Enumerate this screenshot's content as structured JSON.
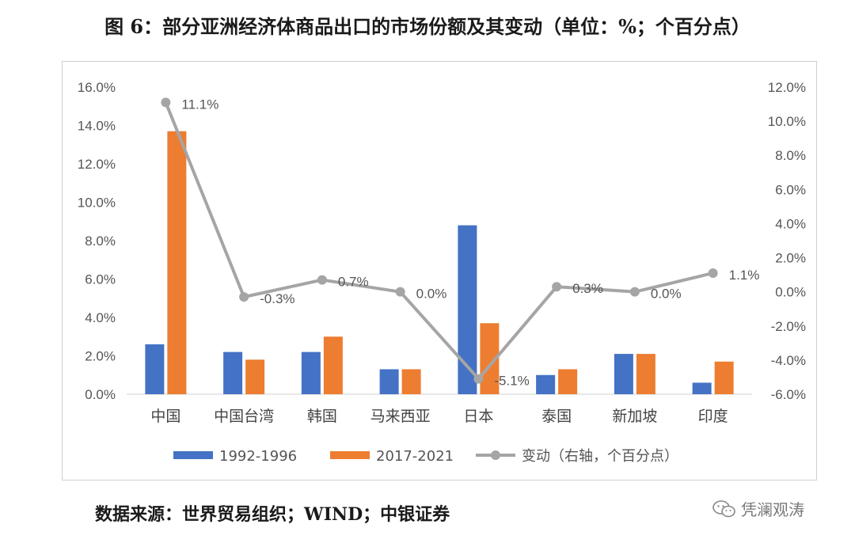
{
  "title": "图 6：部分亚洲经济体商品出口的市场份额及其变动（单位：%；个百分点）",
  "source": "数据来源：世界贸易组织；WIND；中银证券",
  "watermark": "凭澜观涛",
  "colors": {
    "series1": "#4472C4",
    "series2": "#ED7D31",
    "line": "#A5A5A5"
  },
  "chart_data": {
    "type": "bar",
    "categories": [
      "中国",
      "中国台湾",
      "韩国",
      "马来西亚",
      "日本",
      "泰国",
      "新加坡",
      "印度"
    ],
    "series": [
      {
        "name": "1992-1996",
        "axis": "left",
        "values": [
          2.6,
          2.2,
          2.2,
          1.3,
          8.8,
          1.0,
          2.1,
          0.6
        ]
      },
      {
        "name": "2017-2021",
        "axis": "left",
        "values": [
          13.7,
          1.8,
          3.0,
          1.3,
          3.7,
          1.3,
          2.1,
          1.7
        ]
      },
      {
        "name": "变动（右轴，个百分点）",
        "type": "line",
        "axis": "right",
        "values": [
          11.1,
          -0.3,
          0.7,
          0.0,
          -5.1,
          0.3,
          0.0,
          1.1
        ],
        "labels": [
          "11.1%",
          "-0.3%",
          "0.7%",
          "0.0%",
          "-5.1%",
          "0.3%",
          "0.0%",
          "1.1%"
        ]
      }
    ],
    "y_left": {
      "min": 0,
      "max": 16,
      "step": 2,
      "ticks": [
        "0.0%",
        "2.0%",
        "4.0%",
        "6.0%",
        "8.0%",
        "10.0%",
        "12.0%",
        "14.0%",
        "16.0%"
      ]
    },
    "y_right": {
      "min": -6,
      "max": 12,
      "step": 2,
      "ticks": [
        "-6.0%",
        "-4.0%",
        "-2.0%",
        "0.0%",
        "2.0%",
        "4.0%",
        "6.0%",
        "8.0%",
        "10.0%",
        "12.0%"
      ]
    },
    "grid": false,
    "legend_position": "bottom"
  }
}
